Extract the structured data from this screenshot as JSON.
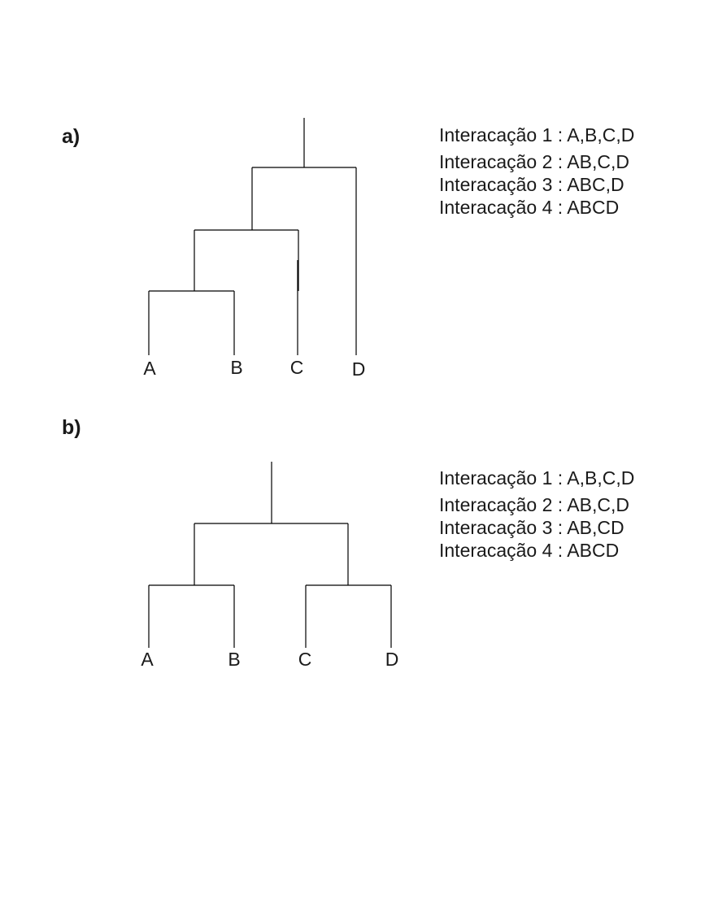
{
  "panels": [
    {
      "label": "a)",
      "leaves": [
        "A",
        "B",
        "C",
        "D"
      ],
      "steps": [
        "Interacação 1 : A,B,C,D",
        "Interacação 2 : AB,C,D",
        "Interacação 3 : ABC,D",
        "Interacação 4 : ABCD"
      ]
    },
    {
      "label": "b)",
      "leaves": [
        "A",
        "B",
        "C",
        "D"
      ],
      "steps": [
        "Interacação 1 : A,B,C,D",
        "Interacação 2 : AB,C,D",
        "Interacação 3 : AB,CD",
        "Interacação 4 : ABCD"
      ]
    }
  ]
}
